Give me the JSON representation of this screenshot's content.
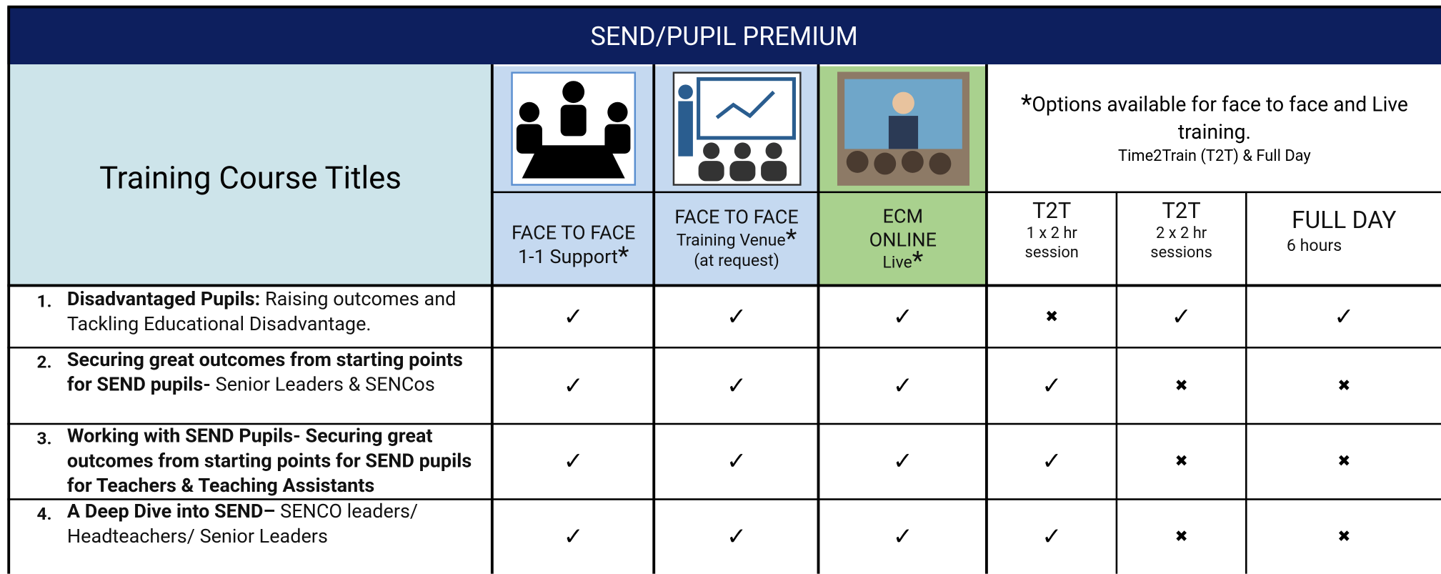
{
  "header": {
    "title": "SEND/PUPIL PREMIUM"
  },
  "table": {
    "corner": "Training Course Titles",
    "note": {
      "star": "*",
      "text": "Options available for face to face and Live training.",
      "subtext": "Time2Train (T2T) & Full Day"
    },
    "columns": [
      {
        "line1": "FACE TO FACE",
        "line2": "1-1 Support",
        "star": "*"
      },
      {
        "line1": "FACE TO FACE",
        "line2": "Training Venue",
        "star": "*",
        "line3": "(at request)"
      },
      {
        "line1": "ECM",
        "line2": "ONLINE",
        "line3": "Live",
        "star": "*"
      },
      {
        "line1": "T2T",
        "line2": "1 x 2 hr",
        "line3": "session"
      },
      {
        "line1": "T2T",
        "line2": "2 x 2 hr",
        "line3": "sessions"
      },
      {
        "line1": "FULL DAY",
        "line2": "6 hours"
      }
    ],
    "rows": [
      {
        "number": "1.",
        "bold": "Disadvantaged Pupils:",
        "text": "Raising outcomes and Tackling Educational Disadvantage.",
        "marks": [
          "✓",
          "✓",
          "✓",
          "✖",
          "✓",
          "✓"
        ]
      },
      {
        "number": "2.",
        "bold": "Securing great outcomes from starting points for SEND pupils-",
        "text": "Senior Leaders & SENCos",
        "marks": [
          "✓",
          "✓",
          "✓",
          "✓",
          "✖",
          "✖"
        ]
      },
      {
        "number": "3.",
        "bold": "Working with SEND Pupils- Securing great outcomes from starting points for SEND pupils for Teachers & Teaching Assistants",
        "marks": [
          "✓",
          "✓",
          "✓",
          "✓",
          "✖",
          "✖"
        ]
      },
      {
        "number": "4.",
        "bold": "A Deep Dive into SEND–",
        "text": "SENCO leaders/ Headteachers/ Senior Leaders",
        "marks": [
          "✓",
          "✓",
          "✓",
          "✓",
          "✖",
          "✖"
        ]
      }
    ]
  }
}
